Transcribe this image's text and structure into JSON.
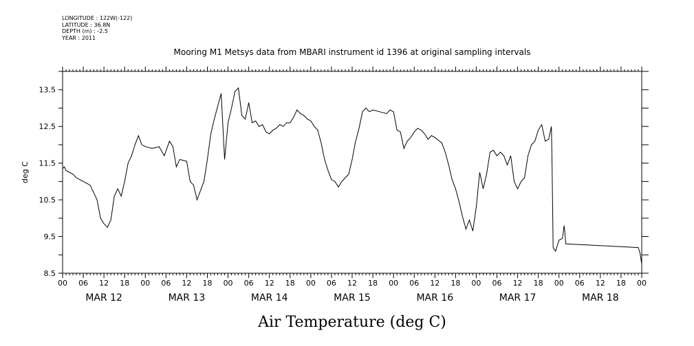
{
  "metadata": {
    "longitude": "LONGITUDE : 122W(-122)",
    "latitude": "LATITUDE : 36.8N",
    "depth": "DEPTH (m) : -2.5",
    "year": "YEAR : 2011"
  },
  "chart_data": {
    "type": "line",
    "title": "Mooring M1 Metsys data from MBARI instrument id 1396 at original sampling intervals",
    "xlabel": "Air Temperature (deg C)",
    "ylabel": "deg C",
    "ylim": [
      8.5,
      14.0
    ],
    "yticks": [
      8.5,
      9.5,
      10.5,
      11.5,
      12.5,
      13.5
    ],
    "yticklabels": [
      "8.5",
      "9.5",
      "10.5",
      "11.5",
      "12.5",
      "13.5"
    ],
    "x_unit": "hours since MAR 12 00",
    "xlim": [
      0,
      168
    ],
    "xticks_hours": [
      0,
      6,
      12,
      18,
      24,
      30,
      36,
      42,
      48,
      54,
      60,
      66,
      72,
      78,
      84,
      90,
      96,
      102,
      108,
      114,
      120,
      126,
      132,
      138,
      144,
      150,
      156,
      162,
      168
    ],
    "xticklabels": [
      "00",
      "06",
      "12",
      "18",
      "00",
      "06",
      "12",
      "18",
      "00",
      "06",
      "12",
      "18",
      "00",
      "06",
      "12",
      "18",
      "00",
      "06",
      "12",
      "18",
      "00",
      "06",
      "12",
      "18",
      "00",
      "06",
      "12",
      "18",
      "00"
    ],
    "day_labels": [
      "MAR 12",
      "MAR 13",
      "MAR 14",
      "MAR 15",
      "MAR 16",
      "MAR 17",
      "MAR 18"
    ],
    "grid": false,
    "series": [
      {
        "values": [
          [
            0.0,
            11.35
          ],
          [
            0.5,
            11.4
          ],
          [
            1.0,
            11.3
          ],
          [
            2.0,
            11.25
          ],
          [
            3.0,
            11.2
          ],
          [
            4.0,
            11.1
          ],
          [
            5.0,
            11.05
          ],
          [
            6.0,
            11.0
          ],
          [
            7.0,
            10.95
          ],
          [
            8.0,
            10.9
          ],
          [
            9.0,
            10.7
          ],
          [
            10.0,
            10.5
          ],
          [
            11.0,
            10.0
          ],
          [
            12.0,
            9.85
          ],
          [
            13.0,
            9.75
          ],
          [
            14.0,
            9.95
          ],
          [
            15.0,
            10.6
          ],
          [
            16.0,
            10.8
          ],
          [
            17.0,
            10.6
          ],
          [
            18.0,
            11.0
          ],
          [
            19.0,
            11.5
          ],
          [
            20.0,
            11.7
          ],
          [
            21.0,
            12.0
          ],
          [
            22.0,
            12.25
          ],
          [
            23.0,
            12.0
          ],
          [
            24.0,
            11.95
          ],
          [
            26.0,
            11.9
          ],
          [
            28.0,
            11.95
          ],
          [
            29.5,
            11.7
          ],
          [
            31.0,
            12.1
          ],
          [
            32.0,
            11.95
          ],
          [
            33.0,
            11.4
          ],
          [
            34.0,
            11.6
          ],
          [
            36.0,
            11.55
          ],
          [
            37.0,
            11.0
          ],
          [
            38.0,
            10.9
          ],
          [
            39.0,
            10.5
          ],
          [
            40.0,
            10.75
          ],
          [
            41.0,
            11.0
          ],
          [
            42.0,
            11.6
          ],
          [
            43.0,
            12.3
          ],
          [
            44.0,
            12.7
          ],
          [
            45.0,
            13.05
          ],
          [
            46.0,
            13.4
          ],
          [
            47.0,
            11.6
          ],
          [
            48.0,
            12.6
          ],
          [
            49.0,
            13.0
          ],
          [
            50.0,
            13.45
          ],
          [
            51.0,
            13.55
          ],
          [
            52.0,
            12.8
          ],
          [
            53.0,
            12.7
          ],
          [
            54.0,
            13.15
          ],
          [
            55.0,
            12.6
          ],
          [
            56.0,
            12.65
          ],
          [
            57.0,
            12.5
          ],
          [
            58.0,
            12.55
          ],
          [
            59.0,
            12.35
          ],
          [
            60.0,
            12.3
          ],
          [
            61.0,
            12.4
          ],
          [
            62.0,
            12.45
          ],
          [
            63.0,
            12.55
          ],
          [
            64.0,
            12.5
          ],
          [
            65.0,
            12.6
          ],
          [
            66.0,
            12.6
          ],
          [
            67.0,
            12.75
          ],
          [
            68.0,
            12.95
          ],
          [
            69.0,
            12.85
          ],
          [
            70.0,
            12.8
          ],
          [
            71.0,
            12.7
          ],
          [
            72.0,
            12.65
          ],
          [
            73.0,
            12.5
          ],
          [
            74.0,
            12.4
          ],
          [
            75.0,
            12.05
          ],
          [
            76.0,
            11.6
          ],
          [
            77.0,
            11.3
          ],
          [
            78.0,
            11.05
          ],
          [
            79.0,
            11.0
          ],
          [
            80.0,
            10.85
          ],
          [
            81.0,
            11.0
          ],
          [
            82.0,
            11.1
          ],
          [
            83.0,
            11.2
          ],
          [
            84.0,
            11.6
          ],
          [
            85.0,
            12.1
          ],
          [
            86.0,
            12.45
          ],
          [
            87.0,
            12.9
          ],
          [
            88.0,
            13.0
          ],
          [
            89.0,
            12.9
          ],
          [
            90.0,
            12.95
          ],
          [
            92.0,
            12.9
          ],
          [
            94.0,
            12.85
          ],
          [
            95.0,
            12.95
          ],
          [
            96.0,
            12.9
          ],
          [
            97.0,
            12.4
          ],
          [
            98.0,
            12.35
          ],
          [
            99.0,
            11.9
          ],
          [
            100.0,
            12.1
          ],
          [
            101.0,
            12.2
          ],
          [
            102.0,
            12.35
          ],
          [
            103.0,
            12.45
          ],
          [
            104.0,
            12.4
          ],
          [
            105.0,
            12.3
          ],
          [
            106.0,
            12.15
          ],
          [
            107.0,
            12.25
          ],
          [
            108.0,
            12.2
          ],
          [
            110.0,
            12.05
          ],
          [
            111.0,
            11.8
          ],
          [
            112.0,
            11.45
          ],
          [
            113.0,
            11.05
          ],
          [
            114.0,
            10.8
          ],
          [
            115.0,
            10.45
          ],
          [
            116.0,
            10.05
          ],
          [
            117.0,
            9.7
          ],
          [
            118.0,
            9.95
          ],
          [
            119.0,
            9.65
          ],
          [
            120.0,
            10.3
          ],
          [
            121.0,
            11.25
          ],
          [
            122.0,
            10.8
          ],
          [
            123.0,
            11.2
          ],
          [
            124.0,
            11.8
          ],
          [
            125.0,
            11.85
          ],
          [
            126.0,
            11.7
          ],
          [
            127.0,
            11.8
          ],
          [
            128.0,
            11.7
          ],
          [
            129.0,
            11.45
          ],
          [
            130.0,
            11.7
          ],
          [
            131.0,
            11.0
          ],
          [
            132.0,
            10.8
          ],
          [
            133.0,
            11.0
          ],
          [
            134.0,
            11.1
          ],
          [
            135.0,
            11.7
          ],
          [
            136.0,
            12.0
          ],
          [
            137.0,
            12.1
          ],
          [
            138.0,
            12.4
          ],
          [
            139.0,
            12.55
          ],
          [
            140.0,
            12.1
          ],
          [
            141.0,
            12.15
          ],
          [
            141.8,
            12.5
          ],
          [
            142.0,
            11.4
          ],
          [
            142.3,
            9.2
          ],
          [
            143.0,
            9.1
          ],
          [
            144.0,
            9.4
          ],
          [
            145.0,
            9.45
          ],
          [
            145.5,
            9.8
          ],
          [
            146.0,
            9.3
          ],
          [
            167.0,
            9.2
          ],
          [
            167.5,
            9.05
          ],
          [
            168.0,
            8.75
          ]
        ]
      }
    ]
  }
}
